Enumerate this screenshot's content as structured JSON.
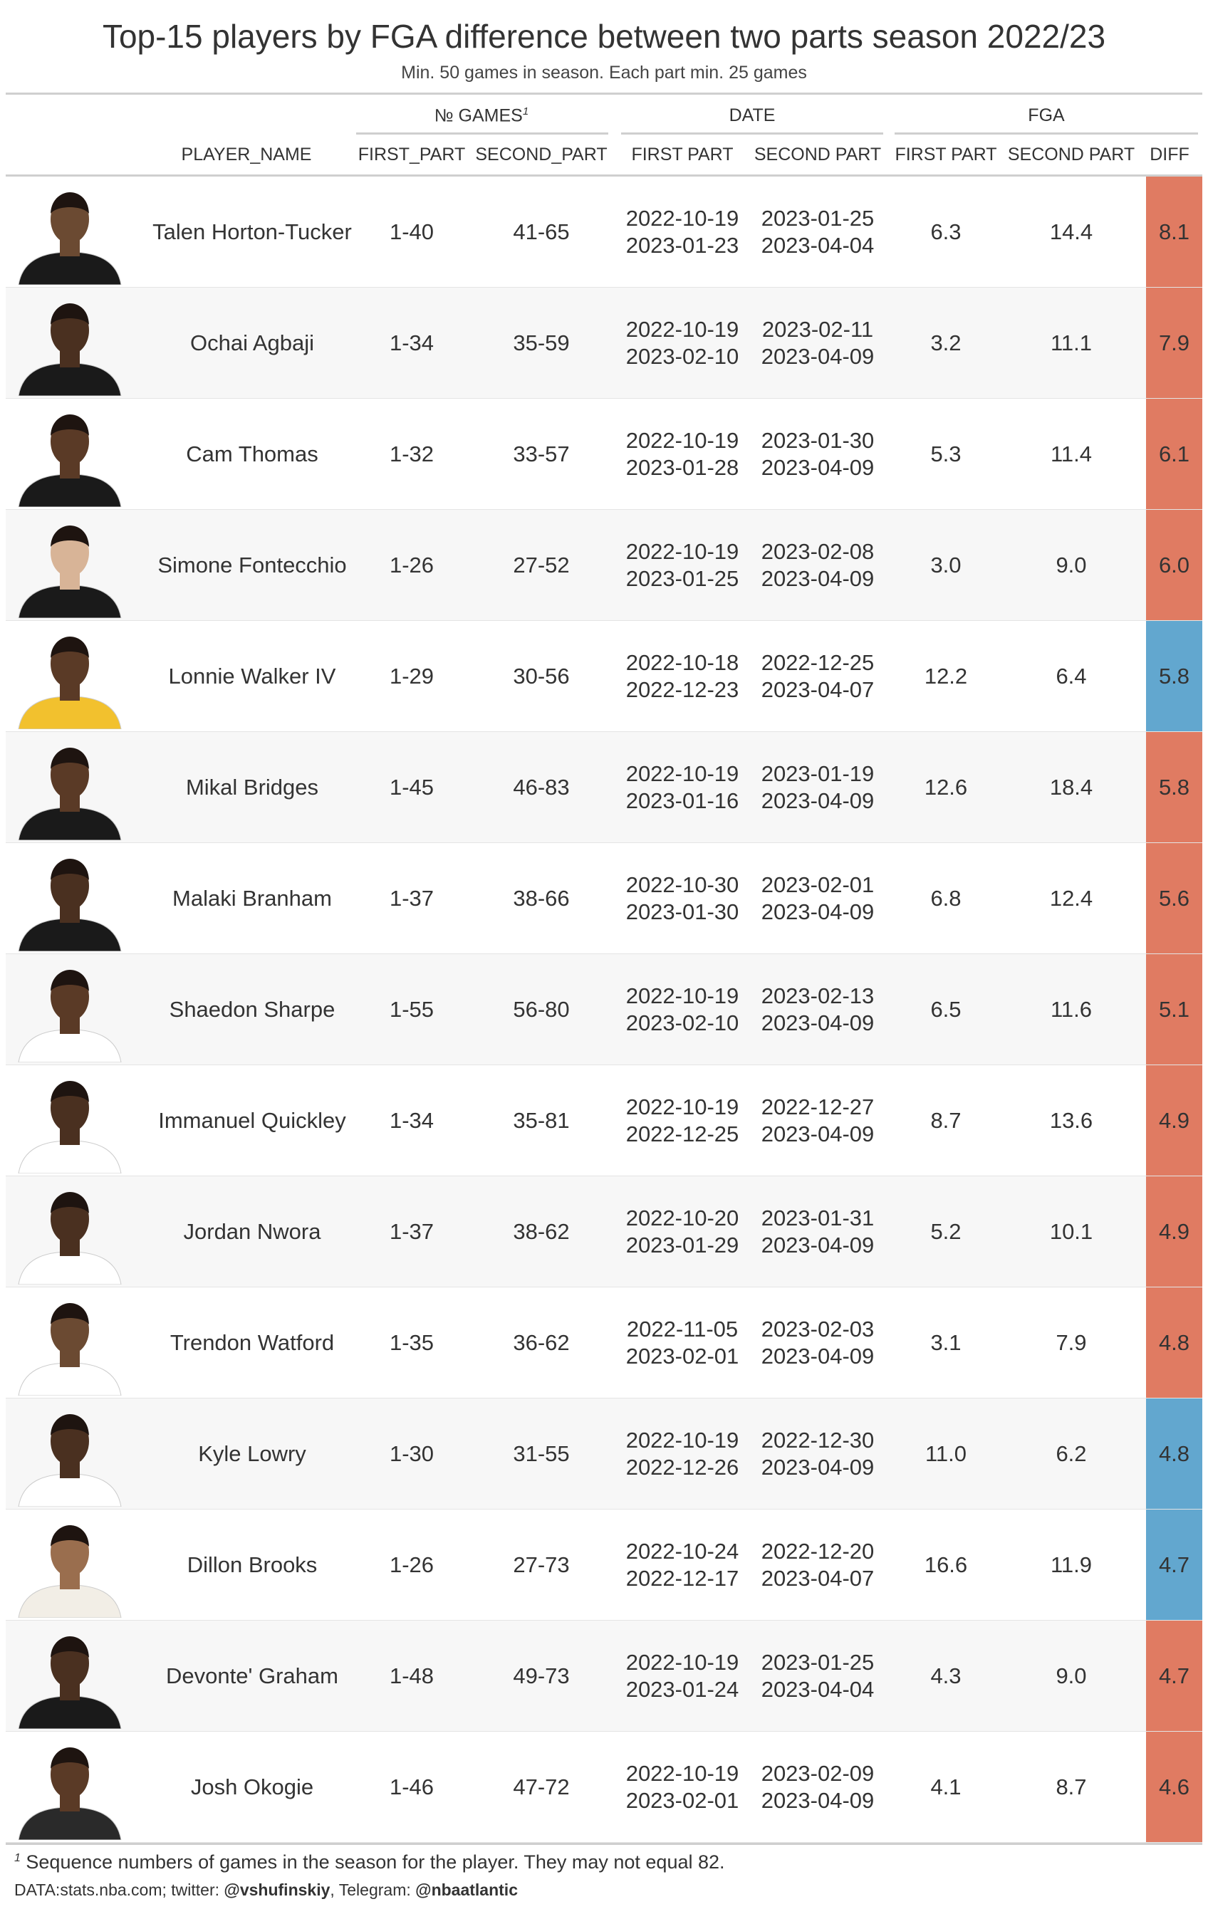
{
  "title": "Top-15 players by FGA difference between two parts season 2022/23",
  "subtitle": "Min. 50 games in season. Each part min. 25 games",
  "headers": {
    "group_games": "№ GAMES",
    "group_games_note": "1",
    "group_date": "DATE",
    "group_fga": "FGA",
    "player_name": "PLAYER_NAME",
    "games_first": "FIRST_PART",
    "games_second": "SECOND_PART",
    "date_first": "FIRST PART",
    "date_second": "SECOND PART",
    "fga_first": "FIRST PART",
    "fga_second": "SECOND PART",
    "diff": "DIFF"
  },
  "colors": {
    "increase": "#e07b62",
    "decrease": "#62a7cf"
  },
  "chart_data": {
    "type": "table",
    "rows": [
      {
        "player": "Talen Horton-Tucker",
        "games_first": "1-40",
        "games_second": "41-65",
        "date_first_start": "2022-10-19",
        "date_first_end": "2023-01-23",
        "date_second_start": "2023-01-25",
        "date_second_end": "2023-04-04",
        "fga_first": "6.3",
        "fga_second": "14.4",
        "diff": "8.1",
        "direction": "increase",
        "jersey": "#1a1a1a",
        "skin": "#6b4a32"
      },
      {
        "player": "Ochai Agbaji",
        "games_first": "1-34",
        "games_second": "35-59",
        "date_first_start": "2022-10-19",
        "date_first_end": "2023-02-10",
        "date_second_start": "2023-02-11",
        "date_second_end": "2023-04-09",
        "fga_first": "3.2",
        "fga_second": "11.1",
        "diff": "7.9",
        "direction": "increase",
        "jersey": "#1a1a1a",
        "skin": "#4a3020"
      },
      {
        "player": "Cam Thomas",
        "games_first": "1-32",
        "games_second": "33-57",
        "date_first_start": "2022-10-19",
        "date_first_end": "2023-01-28",
        "date_second_start": "2023-01-30",
        "date_second_end": "2023-04-09",
        "fga_first": "5.3",
        "fga_second": "11.4",
        "diff": "6.1",
        "direction": "increase",
        "jersey": "#1a1a1a",
        "skin": "#5a3a26"
      },
      {
        "player": "Simone Fontecchio",
        "games_first": "1-26",
        "games_second": "27-52",
        "date_first_start": "2022-10-19",
        "date_first_end": "2023-01-25",
        "date_second_start": "2023-02-08",
        "date_second_end": "2023-04-09",
        "fga_first": "3.0",
        "fga_second": "9.0",
        "diff": "6.0",
        "direction": "increase",
        "jersey": "#1a1a1a",
        "skin": "#d8b497"
      },
      {
        "player": "Lonnie Walker IV",
        "games_first": "1-29",
        "games_second": "30-56",
        "date_first_start": "2022-10-18",
        "date_first_end": "2022-12-23",
        "date_second_start": "2022-12-25",
        "date_second_end": "2023-04-07",
        "fga_first": "12.2",
        "fga_second": "6.4",
        "diff": "5.8",
        "direction": "decrease",
        "jersey": "#f2c12e",
        "skin": "#5a3a26"
      },
      {
        "player": "Mikal Bridges",
        "games_first": "1-45",
        "games_second": "46-83",
        "date_first_start": "2022-10-19",
        "date_first_end": "2023-01-16",
        "date_second_start": "2023-01-19",
        "date_second_end": "2023-04-09",
        "fga_first": "12.6",
        "fga_second": "18.4",
        "diff": "5.8",
        "direction": "increase",
        "jersey": "#1a1a1a",
        "skin": "#5a3a26"
      },
      {
        "player": "Malaki Branham",
        "games_first": "1-37",
        "games_second": "38-66",
        "date_first_start": "2022-10-30",
        "date_first_end": "2023-01-30",
        "date_second_start": "2023-02-01",
        "date_second_end": "2023-04-09",
        "fga_first": "6.8",
        "fga_second": "12.4",
        "diff": "5.6",
        "direction": "increase",
        "jersey": "#1a1a1a",
        "skin": "#4a3020"
      },
      {
        "player": "Shaedon Sharpe",
        "games_first": "1-55",
        "games_second": "56-80",
        "date_first_start": "2022-10-19",
        "date_first_end": "2023-02-10",
        "date_second_start": "2023-02-13",
        "date_second_end": "2023-04-09",
        "fga_first": "6.5",
        "fga_second": "11.6",
        "diff": "5.1",
        "direction": "increase",
        "jersey": "#ffffff",
        "skin": "#5a3a26"
      },
      {
        "player": "Immanuel Quickley",
        "games_first": "1-34",
        "games_second": "35-81",
        "date_first_start": "2022-10-19",
        "date_first_end": "2022-12-25",
        "date_second_start": "2022-12-27",
        "date_second_end": "2023-04-09",
        "fga_first": "8.7",
        "fga_second": "13.6",
        "diff": "4.9",
        "direction": "increase",
        "jersey": "#ffffff",
        "skin": "#4a3020"
      },
      {
        "player": "Jordan Nwora",
        "games_first": "1-37",
        "games_second": "38-62",
        "date_first_start": "2022-10-20",
        "date_first_end": "2023-01-29",
        "date_second_start": "2023-01-31",
        "date_second_end": "2023-04-09",
        "fga_first": "5.2",
        "fga_second": "10.1",
        "diff": "4.9",
        "direction": "increase",
        "jersey": "#ffffff",
        "skin": "#4a3020"
      },
      {
        "player": "Trendon Watford",
        "games_first": "1-35",
        "games_second": "36-62",
        "date_first_start": "2022-11-05",
        "date_first_end": "2023-02-01",
        "date_second_start": "2023-02-03",
        "date_second_end": "2023-04-09",
        "fga_first": "3.1",
        "fga_second": "7.9",
        "diff": "4.8",
        "direction": "increase",
        "jersey": "#ffffff",
        "skin": "#6b4a32"
      },
      {
        "player": "Kyle Lowry",
        "games_first": "1-30",
        "games_second": "31-55",
        "date_first_start": "2022-10-19",
        "date_first_end": "2022-12-26",
        "date_second_start": "2022-12-30",
        "date_second_end": "2023-04-09",
        "fga_first": "11.0",
        "fga_second": "6.2",
        "diff": "4.8",
        "direction": "decrease",
        "jersey": "#ffffff",
        "skin": "#4a3020"
      },
      {
        "player": "Dillon Brooks",
        "games_first": "1-26",
        "games_second": "27-73",
        "date_first_start": "2022-10-24",
        "date_first_end": "2022-12-17",
        "date_second_start": "2022-12-20",
        "date_second_end": "2023-04-07",
        "fga_first": "16.6",
        "fga_second": "11.9",
        "diff": "4.7",
        "direction": "decrease",
        "jersey": "#f2eee6",
        "skin": "#9a6e4e"
      },
      {
        "player": "Devonte' Graham",
        "games_first": "1-48",
        "games_second": "49-73",
        "date_first_start": "2022-10-19",
        "date_first_end": "2023-01-24",
        "date_second_start": "2023-01-25",
        "date_second_end": "2023-04-04",
        "fga_first": "4.3",
        "fga_second": "9.0",
        "diff": "4.7",
        "direction": "increase",
        "jersey": "#1a1a1a",
        "skin": "#4a3020"
      },
      {
        "player": "Josh Okogie",
        "games_first": "1-46",
        "games_second": "47-72",
        "date_first_start": "2022-10-19",
        "date_first_end": "2023-02-01",
        "date_second_start": "2023-02-09",
        "date_second_end": "2023-04-09",
        "fga_first": "4.1",
        "fga_second": "8.7",
        "diff": "4.6",
        "direction": "increase",
        "jersey": "#2a2a2a",
        "skin": "#5a3a26"
      }
    ]
  },
  "footnote": {
    "marker": "1",
    "text": " Sequence numbers of games in the season for the player. They may not equal 82."
  },
  "credits": {
    "data_prefix": "DATA:stats.nba.com; twitter: ",
    "twitter": "@vshufinskiy",
    "telegram_prefix": ", Telegram: ",
    "telegram": "@nbaatlantic"
  }
}
